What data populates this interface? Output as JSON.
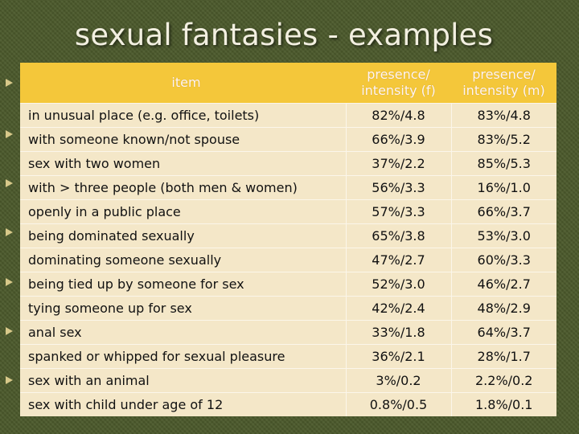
{
  "slide": {
    "title": "sexual fantasies - examples"
  },
  "table": {
    "headers": {
      "item": "item",
      "female": "presence/ intensity (f)",
      "male": "presence/ intensity (m)"
    },
    "rows": [
      {
        "item": "in unusual place (e.g. office, toilets)",
        "f": "82%/4.8",
        "m": "83%/4.8"
      },
      {
        "item": "with someone known/not spouse",
        "f": "66%/3.9",
        "m": "83%/5.2"
      },
      {
        "item": "sex with two women",
        "f": "37%/2.2",
        "m": "85%/5.3"
      },
      {
        "item": "with > three people (both men & women)",
        "f": "56%/3.3",
        "m": "16%/1.0"
      },
      {
        "item": "openly in a public place",
        "f": "57%/3.3",
        "m": "66%/3.7"
      },
      {
        "item": "being dominated sexually",
        "f": "65%/3.8",
        "m": "53%/3.0"
      },
      {
        "item": "dominating someone sexually",
        "f": "47%/2.7",
        "m": "60%/3.3"
      },
      {
        "item": "being tied up by someone for sex",
        "f": "52%/3.0",
        "m": "46%/2.7"
      },
      {
        "item": "tying someone up for sex",
        "f": "42%/2.4",
        "m": "48%/2.9"
      },
      {
        "item": "anal sex",
        "f": "33%/1.8",
        "m": "64%/3.7"
      },
      {
        "item": "spanked or whipped for sexual pleasure",
        "f": "36%/2.1",
        "m": "28%/1.7"
      },
      {
        "item": "sex with an animal",
        "f": "3%/0.2",
        "m": "2.2%/0.2"
      },
      {
        "item": "sex with child under age of 12",
        "f": "0.8%/0.5",
        "m": "1.8%/0.1"
      }
    ]
  }
}
